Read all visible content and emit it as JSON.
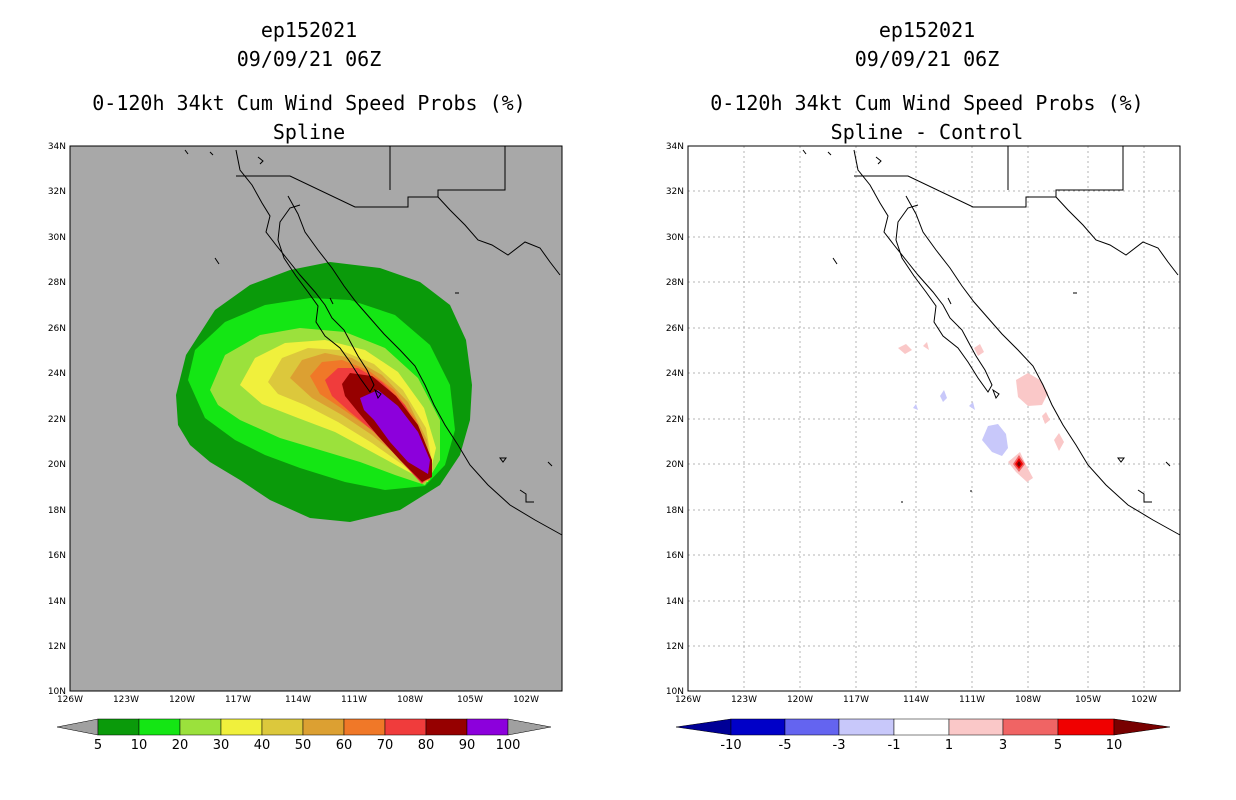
{
  "panels": [
    {
      "storm_id": "ep152021",
      "datetime": "09/09/21 06Z",
      "product": "0-120h 34kt Cum Wind Speed Probs (%)",
      "subtitle": "Spline",
      "lat_labels": [
        "34N",
        "32N",
        "30N",
        "28N",
        "26N",
        "24N",
        "22N",
        "20N",
        "18N",
        "16N",
        "14N",
        "12N",
        "10N"
      ],
      "lon_labels": [
        "126W",
        "123W",
        "120W",
        "117W",
        "114W",
        "111W",
        "108W",
        "105W",
        "102W"
      ],
      "colorbar": {
        "colors": [
          "#0a9a0a",
          "#14e614",
          "#9be13c",
          "#f0f03c",
          "#dcc83c",
          "#dca032",
          "#f07828",
          "#f03c3c",
          "#960000",
          "#8c00dc"
        ],
        "labels": [
          "5",
          "10",
          "20",
          "30",
          "40",
          "50",
          "60",
          "70",
          "80",
          "90",
          "100"
        ],
        "low_arrow_color": "#a0a0a0",
        "high_arrow_color": "#a0a0a0"
      },
      "background_color": "#a8a8a8"
    },
    {
      "storm_id": "ep152021",
      "datetime": "09/09/21 06Z",
      "product": "0-120h 34kt Cum Wind Speed Probs (%)",
      "subtitle": "Spline - Control",
      "lat_labels": [
        "34N",
        "32N",
        "30N",
        "28N",
        "26N",
        "24N",
        "22N",
        "20N",
        "18N",
        "16N",
        "14N",
        "12N",
        "10N"
      ],
      "lon_labels": [
        "126W",
        "123W",
        "120W",
        "117W",
        "114W",
        "111W",
        "108W",
        "105W",
        "102W"
      ],
      "colorbar": {
        "colors": [
          "#0000c8",
          "#6464f0",
          "#c8c8fa",
          "#ffffff",
          "#fac8c8",
          "#f06464",
          "#f00000"
        ],
        "labels": [
          "-10",
          "-5",
          "-3",
          "-1",
          "1",
          "3",
          "5",
          "10"
        ],
        "low_arrow_color": "#000096",
        "high_arrow_color": "#780000"
      },
      "background_color": "#ffffff"
    }
  ]
}
